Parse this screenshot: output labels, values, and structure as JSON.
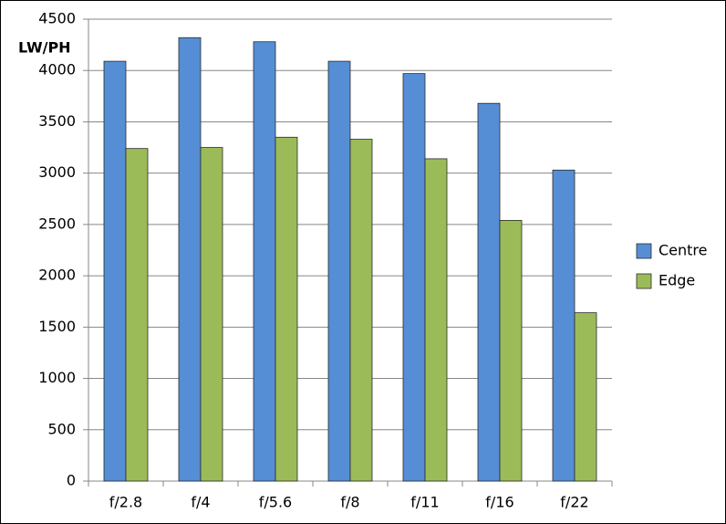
{
  "chart_data": {
    "type": "bar",
    "y_label": "LW/PH",
    "categories": [
      "f/2.8",
      "f/4",
      "f/5.6",
      "f/8",
      "f/11",
      "f/16",
      "f/22"
    ],
    "series": [
      {
        "name": "Centre",
        "color": "#558ed5",
        "values": [
          4090,
          4320,
          4280,
          4090,
          3970,
          3680,
          3030
        ]
      },
      {
        "name": "Edge",
        "color": "#9bbb59",
        "values": [
          3240,
          3250,
          3350,
          3330,
          3140,
          2540,
          1640
        ]
      }
    ],
    "ylim": [
      0,
      4500
    ],
    "yticks": [
      0,
      500,
      1000,
      1500,
      2000,
      2500,
      3000,
      3500,
      4000,
      4500
    ],
    "grid": true,
    "legend": "right"
  }
}
